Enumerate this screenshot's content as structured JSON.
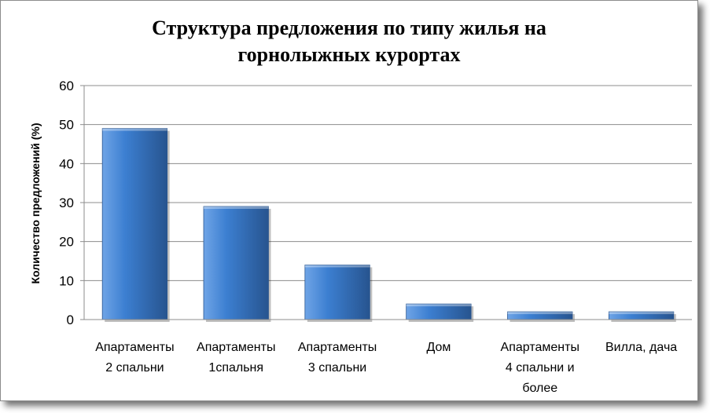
{
  "chart_data": {
    "type": "bar",
    "title_lines": [
      "Структура предложения по типу жилья на",
      "горнолыжных курортах"
    ],
    "ylabel": "Количество предложений (%)",
    "xlabel": "",
    "categories": [
      [
        "Апартаменты",
        "2 спальни"
      ],
      [
        "Апартаменты",
        "1спальня"
      ],
      [
        "Апартаменты",
        "3 спальни"
      ],
      [
        "Дом"
      ],
      [
        "Апартаменты",
        "4 спальни и",
        "более"
      ],
      [
        "Вилла, дача"
      ]
    ],
    "values": [
      49,
      29,
      14,
      4,
      2,
      2
    ],
    "ylim": [
      0,
      60
    ],
    "yticks": [
      0,
      10,
      20,
      30,
      40,
      50,
      60
    ],
    "grid": true,
    "legend": "none",
    "colors": {
      "bar_light": "#6fa4e6",
      "bar_mid": "#3c7fd1",
      "bar_dark": "#27548f",
      "grid": "#8c8c8c",
      "axis": "#8c8c8c"
    }
  }
}
